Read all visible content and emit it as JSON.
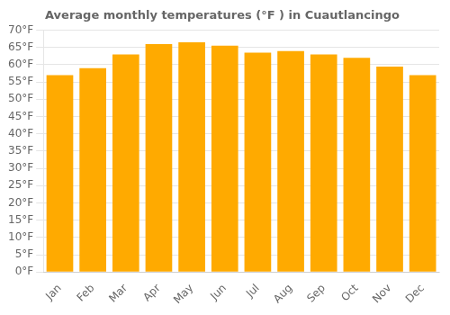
{
  "chart_data": {
    "type": "bar",
    "title": "Average monthly temperatures (°F ) in Cuautlancingo",
    "categories": [
      "Jan",
      "Feb",
      "Mar",
      "Apr",
      "May",
      "Jun",
      "Jul",
      "Aug",
      "Sep",
      "Oct",
      "Nov",
      "Dec"
    ],
    "values": [
      57,
      59,
      63,
      66,
      66.5,
      65.5,
      63.5,
      64,
      63,
      62,
      59.5,
      57
    ],
    "color": "#FFAA00",
    "ylim": [
      0,
      70
    ],
    "yticks": [
      {
        "value": 0,
        "label": "0°F"
      },
      {
        "value": 5,
        "label": "5°F"
      },
      {
        "value": 10,
        "label": "10°F"
      },
      {
        "value": 15,
        "label": "15°F"
      },
      {
        "value": 20,
        "label": "20°F"
      },
      {
        "value": 25,
        "label": "25°F"
      },
      {
        "value": 30,
        "label": "30°F"
      },
      {
        "value": 35,
        "label": "35°F"
      },
      {
        "value": 40,
        "label": "40°F"
      },
      {
        "value": 45,
        "label": "45°F"
      },
      {
        "value": 50,
        "label": "50°F"
      },
      {
        "value": 55,
        "label": "55°F"
      },
      {
        "value": 60,
        "label": "60°F"
      },
      {
        "value": 65,
        "label": "65°F"
      },
      {
        "value": 70,
        "label": "70°F"
      }
    ],
    "grid": true
  }
}
